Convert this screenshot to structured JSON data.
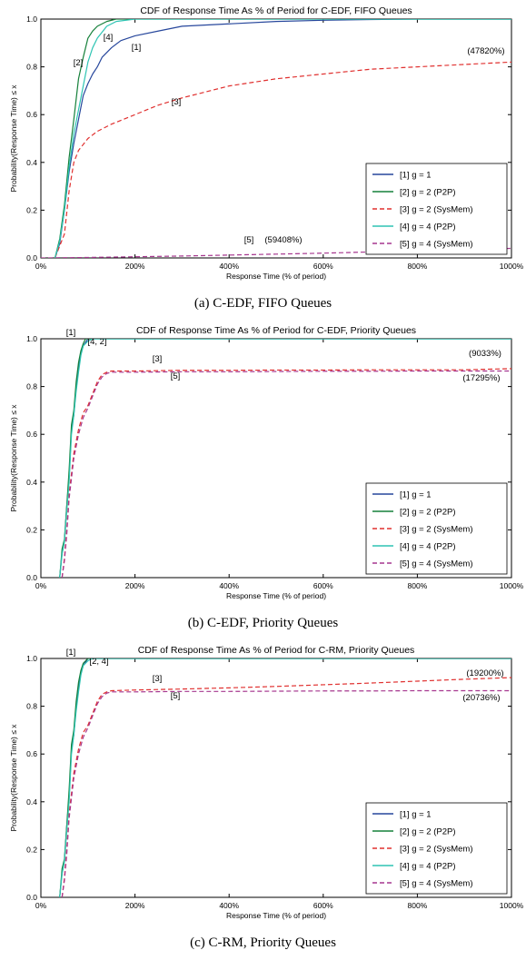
{
  "colors": {
    "g1": "#27479c",
    "g2_p2p": "#15803a",
    "g2_sysmem": "#e0302f",
    "g4_p2p": "#2ec4b3",
    "g4_sysmem": "#a6378f",
    "axis": "#000000"
  },
  "chart_data": [
    {
      "type": "line",
      "title": "CDF of Response Time As % of Period for C-EDF, FIFO Queues",
      "caption": "(a) C-EDF, FIFO Queues",
      "xlabel": "Response Time (% of period)",
      "ylabel": "Probability(Response Time) ≤ x",
      "xlim": [
        0,
        1000
      ],
      "ylim": [
        0,
        1.0
      ],
      "x_ticks": [
        0,
        200,
        400,
        600,
        800,
        1000
      ],
      "x_tick_labels": [
        "0%",
        "200%",
        "400%",
        "600%",
        "800%",
        "1000%"
      ],
      "y_ticks": [
        0,
        0.2,
        0.4,
        0.6,
        0.8,
        1.0
      ],
      "y_tick_labels": [
        "0.0",
        "0.2",
        "0.4",
        "0.6",
        "0.8",
        "1.0"
      ],
      "legend_position": "lower-right",
      "series": [
        {
          "name": "[1] g = 1",
          "style": "solid",
          "color_key": "g1",
          "x": [
            30,
            40,
            50,
            60,
            70,
            80,
            90,
            100,
            110,
            120,
            130,
            150,
            170,
            200,
            250,
            300,
            400,
            500,
            600,
            700,
            800,
            1000
          ],
          "y": [
            0,
            0.06,
            0.2,
            0.36,
            0.48,
            0.58,
            0.68,
            0.73,
            0.77,
            0.8,
            0.84,
            0.88,
            0.91,
            0.93,
            0.95,
            0.97,
            0.98,
            0.99,
            0.995,
            0.998,
            1.0,
            1.0
          ]
        },
        {
          "name": "[2] g = 2 (P2P)",
          "style": "solid",
          "color_key": "g2_p2p",
          "x": [
            30,
            40,
            50,
            60,
            70,
            80,
            90,
            100,
            110,
            120,
            140,
            160,
            200,
            300,
            1000
          ],
          "y": [
            0,
            0.08,
            0.22,
            0.42,
            0.58,
            0.75,
            0.84,
            0.92,
            0.95,
            0.97,
            0.99,
            1.0,
            1.0,
            1.0,
            1.0
          ]
        },
        {
          "name": "[3] g = 2 (SysMem)",
          "style": "dashed",
          "color_key": "g2_sysmem",
          "x": [
            30,
            50,
            60,
            70,
            80,
            100,
            120,
            150,
            200,
            250,
            300,
            400,
            500,
            600,
            700,
            800,
            900,
            1000
          ],
          "y": [
            0,
            0.1,
            0.28,
            0.4,
            0.45,
            0.5,
            0.53,
            0.56,
            0.6,
            0.64,
            0.67,
            0.72,
            0.75,
            0.77,
            0.79,
            0.8,
            0.81,
            0.82
          ]
        },
        {
          "name": "[4] g = 4 (P2P)",
          "style": "solid",
          "color_key": "g4_p2p",
          "x": [
            30,
            40,
            50,
            60,
            70,
            80,
            90,
            100,
            110,
            120,
            140,
            160,
            200,
            300,
            1000
          ],
          "y": [
            0,
            0.07,
            0.2,
            0.38,
            0.52,
            0.62,
            0.72,
            0.82,
            0.88,
            0.92,
            0.97,
            0.99,
            1.0,
            1.0,
            1.0
          ]
        },
        {
          "name": "[5] g = 4 (SysMem)",
          "style": "dashed",
          "color_key": "g4_sysmem",
          "x": [
            0,
            100,
            200,
            300,
            400,
            500,
            600,
            700,
            800,
            900,
            1000
          ],
          "y": [
            0,
            0.002,
            0.005,
            0.008,
            0.012,
            0.016,
            0.02,
            0.025,
            0.03,
            0.035,
            0.04
          ]
        }
      ],
      "annotations": [
        "[1]",
        "[2]",
        "[3]",
        "[4]",
        "[5]",
        "(47820%)",
        "(59408%)"
      ]
    },
    {
      "type": "line",
      "title": "CDF of Response Time As % of Period for C-EDF, Priority Queues",
      "caption": "(b) C-EDF, Priority Queues",
      "xlabel": "Response Time (% of period)",
      "ylabel": "Probability(Response Time) ≤ x",
      "xlim": [
        0,
        1000
      ],
      "ylim": [
        0,
        1.0
      ],
      "x_ticks": [
        0,
        200,
        400,
        600,
        800,
        1000
      ],
      "x_tick_labels": [
        "0%",
        "200%",
        "400%",
        "600%",
        "800%",
        "1000%"
      ],
      "y_ticks": [
        0,
        0.2,
        0.4,
        0.6,
        0.8,
        1.0
      ],
      "y_tick_labels": [
        "0.0",
        "0.2",
        "0.4",
        "0.6",
        "0.8",
        "1.0"
      ],
      "legend_position": "lower-right",
      "series": [
        {
          "name": "[1] g = 1",
          "style": "solid",
          "color_key": "g1",
          "x": [
            40,
            45,
            50,
            55,
            60,
            65,
            70,
            75,
            80,
            85,
            90,
            100,
            110,
            120,
            200,
            1000
          ],
          "y": [
            0,
            0.1,
            0.15,
            0.3,
            0.42,
            0.62,
            0.68,
            0.8,
            0.88,
            0.94,
            0.97,
            1.0,
            1.0,
            1.0,
            1.0,
            1.0
          ]
        },
        {
          "name": "[2] g = 2 (P2P)",
          "style": "solid",
          "color_key": "g2_p2p",
          "x": [
            40,
            45,
            50,
            55,
            60,
            65,
            70,
            75,
            80,
            85,
            90,
            95,
            100,
            200,
            1000
          ],
          "y": [
            0,
            0.12,
            0.16,
            0.3,
            0.45,
            0.64,
            0.7,
            0.82,
            0.9,
            0.95,
            0.98,
            1.0,
            1.0,
            1.0,
            1.0
          ]
        },
        {
          "name": "[3] g = 2 (SysMem)",
          "style": "dashed",
          "color_key": "g2_sysmem",
          "x": [
            45,
            50,
            55,
            60,
            70,
            80,
            90,
            100,
            110,
            120,
            130,
            140,
            150,
            200,
            300,
            400,
            500,
            600,
            700,
            800,
            900,
            1000
          ],
          "y": [
            0,
            0.08,
            0.2,
            0.35,
            0.52,
            0.62,
            0.69,
            0.72,
            0.77,
            0.82,
            0.85,
            0.86,
            0.865,
            0.865,
            0.868,
            0.868,
            0.869,
            0.869,
            0.87,
            0.87,
            0.87,
            0.875
          ]
        },
        {
          "name": "[4] g = 4 (P2P)",
          "style": "solid",
          "color_key": "g4_p2p",
          "x": [
            40,
            45,
            50,
            55,
            60,
            65,
            70,
            75,
            80,
            85,
            90,
            100,
            110,
            200,
            1000
          ],
          "y": [
            0,
            0.1,
            0.15,
            0.28,
            0.4,
            0.6,
            0.68,
            0.78,
            0.86,
            0.93,
            0.97,
            0.99,
            1.0,
            1.0,
            1.0
          ]
        },
        {
          "name": "[5] g = 4 (SysMem)",
          "style": "dashed",
          "color_key": "g4_sysmem",
          "x": [
            45,
            50,
            55,
            60,
            70,
            80,
            90,
            100,
            110,
            120,
            130,
            140,
            150,
            200,
            300,
            400,
            500,
            600,
            700,
            800,
            900,
            1000
          ],
          "y": [
            0,
            0.07,
            0.18,
            0.33,
            0.5,
            0.6,
            0.67,
            0.71,
            0.76,
            0.81,
            0.84,
            0.855,
            0.86,
            0.86,
            0.862,
            0.862,
            0.863,
            0.864,
            0.864,
            0.865,
            0.865,
            0.865
          ]
        }
      ],
      "annotations": [
        "[1]",
        "[4, 2]",
        "[3]",
        "[5]",
        "(9033%)",
        "(17295%)"
      ]
    },
    {
      "type": "line",
      "title": "CDF of Response Time As % of Period for C-RM, Priority Queues",
      "caption": "(c) C-RM, Priority Queues",
      "xlabel": "Response Time (% of period)",
      "ylabel": "Probability(Response Time) ≤ x",
      "xlim": [
        0,
        1000
      ],
      "ylim": [
        0,
        1.0
      ],
      "x_ticks": [
        0,
        200,
        400,
        600,
        800,
        1000
      ],
      "x_tick_labels": [
        "0%",
        "200%",
        "400%",
        "600%",
        "800%",
        "1000%"
      ],
      "y_ticks": [
        0,
        0.2,
        0.4,
        0.6,
        0.8,
        1.0
      ],
      "y_tick_labels": [
        "0.0",
        "0.2",
        "0.4",
        "0.6",
        "0.8",
        "1.0"
      ],
      "legend_position": "lower-right",
      "series": [
        {
          "name": "[1] g = 1",
          "style": "solid",
          "color_key": "g1",
          "x": [
            40,
            45,
            50,
            55,
            60,
            65,
            70,
            75,
            80,
            85,
            90,
            100,
            110,
            200,
            1000
          ],
          "y": [
            0,
            0.1,
            0.15,
            0.3,
            0.42,
            0.62,
            0.68,
            0.8,
            0.88,
            0.94,
            0.97,
            1.0,
            1.0,
            1.0,
            1.0
          ]
        },
        {
          "name": "[2] g = 2 (P2P)",
          "style": "solid",
          "color_key": "g2_p2p",
          "x": [
            40,
            45,
            50,
            55,
            60,
            65,
            70,
            75,
            80,
            85,
            90,
            100,
            200,
            1000
          ],
          "y": [
            0,
            0.12,
            0.16,
            0.3,
            0.45,
            0.64,
            0.7,
            0.82,
            0.9,
            0.95,
            0.98,
            1.0,
            1.0,
            1.0
          ]
        },
        {
          "name": "[3] g = 2 (SysMem)",
          "style": "dashed",
          "color_key": "g2_sysmem",
          "x": [
            45,
            50,
            55,
            60,
            70,
            80,
            90,
            100,
            110,
            120,
            130,
            140,
            150,
            200,
            300,
            400,
            500,
            600,
            700,
            800,
            900,
            1000
          ],
          "y": [
            0,
            0.08,
            0.2,
            0.35,
            0.52,
            0.62,
            0.69,
            0.72,
            0.77,
            0.82,
            0.85,
            0.86,
            0.865,
            0.868,
            0.872,
            0.877,
            0.883,
            0.89,
            0.897,
            0.905,
            0.913,
            0.92
          ]
        },
        {
          "name": "[4] g = 4 (P2P)",
          "style": "solid",
          "color_key": "g4_p2p",
          "x": [
            40,
            45,
            50,
            55,
            60,
            65,
            70,
            75,
            80,
            85,
            90,
            100,
            110,
            200,
            1000
          ],
          "y": [
            0,
            0.1,
            0.15,
            0.28,
            0.4,
            0.6,
            0.68,
            0.78,
            0.86,
            0.93,
            0.97,
            0.99,
            1.0,
            1.0,
            1.0
          ]
        },
        {
          "name": "[5] g = 4 (SysMem)",
          "style": "dashed",
          "color_key": "g4_sysmem",
          "x": [
            45,
            50,
            55,
            60,
            70,
            80,
            90,
            100,
            110,
            120,
            130,
            140,
            150,
            200,
            300,
            400,
            500,
            600,
            700,
            800,
            900,
            1000
          ],
          "y": [
            0,
            0.07,
            0.18,
            0.33,
            0.5,
            0.6,
            0.67,
            0.71,
            0.76,
            0.81,
            0.84,
            0.855,
            0.86,
            0.86,
            0.862,
            0.862,
            0.863,
            0.864,
            0.864,
            0.865,
            0.865,
            0.865
          ]
        }
      ],
      "annotations": [
        "[1]",
        "[2, 4]",
        "[3]",
        "[5]",
        "(19200%)",
        "(20736%)"
      ]
    }
  ]
}
